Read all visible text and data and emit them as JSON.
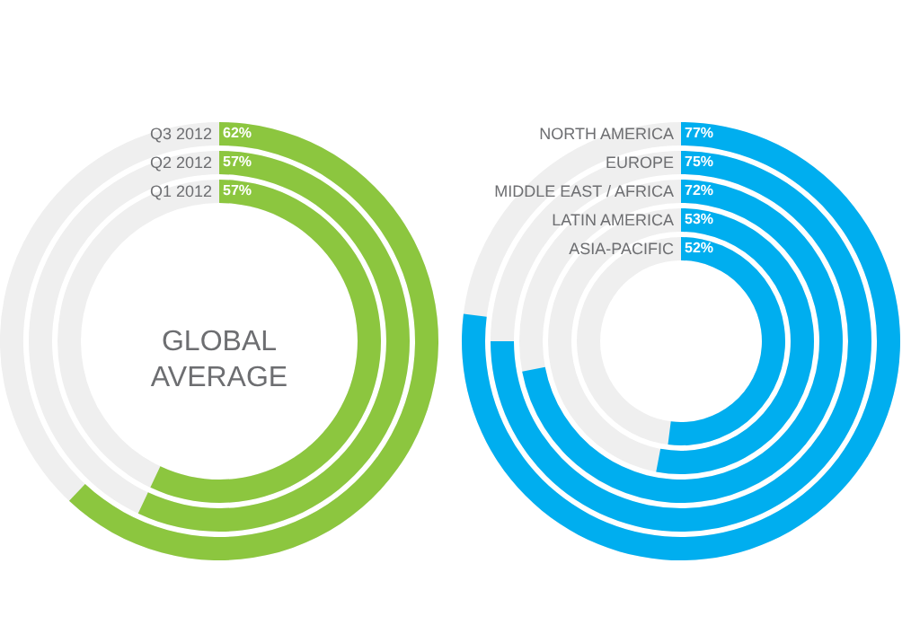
{
  "chart_data": [
    {
      "type": "other",
      "categories": [
        "Q3 2012",
        "Q2 2012",
        "Q1 2012"
      ],
      "values": [
        62,
        57,
        57
      ],
      "value_labels": [
        "62%",
        "57%",
        "57%"
      ],
      "color": "#8cc63f",
      "annotations": [
        "GLOBAL AVERAGE"
      ]
    },
    {
      "type": "other",
      "categories": [
        "NORTH AMERICA",
        "EUROPE",
        "MIDDLE EAST / AFRICA",
        "LATIN AMERICA",
        "ASIA-PACIFIC"
      ],
      "values": [
        77,
        75,
        72,
        53,
        52
      ],
      "value_labels": [
        "77%",
        "75%",
        "72%",
        "53%",
        "52%"
      ],
      "color": "#00aeef"
    }
  ]
}
